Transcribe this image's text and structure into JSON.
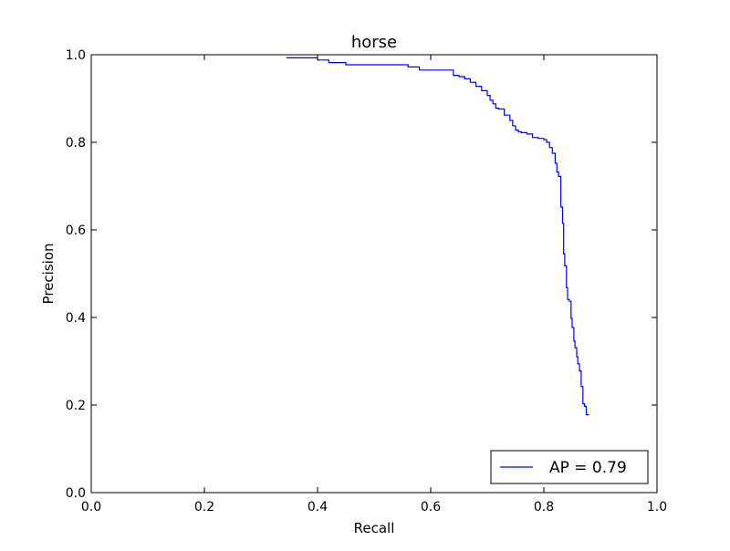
{
  "chart_data": {
    "type": "line",
    "title": "horse",
    "xlabel": "Recall",
    "ylabel": "Precision",
    "xlim": [
      0.0,
      1.0
    ],
    "ylim": [
      0.0,
      1.0
    ],
    "xticks": [
      "0.0",
      "0.2",
      "0.4",
      "0.6",
      "0.8",
      "1.0"
    ],
    "yticks": [
      "0.0",
      "0.2",
      "0.4",
      "0.6",
      "0.8",
      "1.0"
    ],
    "grid": false,
    "legend_position": "lower-right",
    "series": [
      {
        "name": "AP = 0.79",
        "color": "#0000ff",
        "step": true,
        "x": [
          0.345,
          0.4,
          0.42,
          0.45,
          0.56,
          0.58,
          0.64,
          0.65,
          0.66,
          0.67,
          0.68,
          0.69,
          0.7,
          0.705,
          0.71,
          0.715,
          0.72,
          0.73,
          0.74,
          0.745,
          0.75,
          0.755,
          0.76,
          0.77,
          0.78,
          0.79,
          0.8,
          0.805,
          0.81,
          0.815,
          0.82,
          0.823,
          0.826,
          0.83,
          0.833,
          0.835,
          0.837,
          0.84,
          0.842,
          0.845,
          0.848,
          0.85,
          0.853,
          0.855,
          0.858,
          0.86,
          0.863,
          0.866,
          0.869,
          0.872,
          0.875,
          0.88
        ],
        "y": [
          0.993,
          0.988,
          0.982,
          0.977,
          0.972,
          0.965,
          0.953,
          0.95,
          0.945,
          0.937,
          0.928,
          0.918,
          0.907,
          0.896,
          0.888,
          0.878,
          0.876,
          0.862,
          0.85,
          0.838,
          0.828,
          0.824,
          0.822,
          0.819,
          0.811,
          0.809,
          0.806,
          0.8,
          0.788,
          0.775,
          0.752,
          0.732,
          0.722,
          0.652,
          0.615,
          0.545,
          0.518,
          0.468,
          0.441,
          0.437,
          0.398,
          0.377,
          0.346,
          0.331,
          0.31,
          0.294,
          0.278,
          0.242,
          0.203,
          0.197,
          0.178,
          0.178
        ]
      }
    ]
  }
}
